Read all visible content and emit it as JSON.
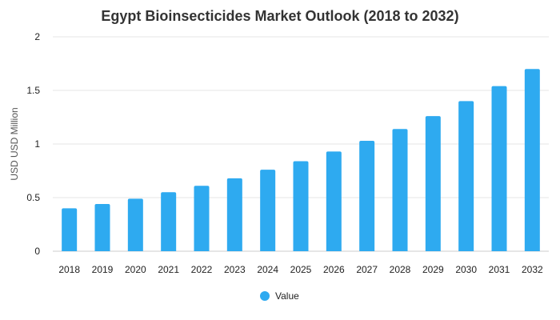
{
  "chart_data": {
    "type": "bar",
    "title": "Egypt Bioinsecticides Market Outlook (2018 to 2032)",
    "xlabel": "",
    "ylabel": "USD USD Million",
    "categories": [
      "2018",
      "2019",
      "2020",
      "2021",
      "2022",
      "2023",
      "2024",
      "2025",
      "2026",
      "2027",
      "2028",
      "2029",
      "2030",
      "2031",
      "2032"
    ],
    "series": [
      {
        "name": "Value",
        "color": "#2eaaf0",
        "values": [
          0.4,
          0.44,
          0.49,
          0.55,
          0.61,
          0.68,
          0.76,
          0.84,
          0.93,
          1.03,
          1.14,
          1.26,
          1.4,
          1.54,
          1.7
        ]
      }
    ],
    "ylim": [
      0,
      2
    ],
    "yticks": [
      "0",
      "0.5",
      "1",
      "1.5",
      "2"
    ],
    "grid": true,
    "legend_position": "bottom-center"
  }
}
